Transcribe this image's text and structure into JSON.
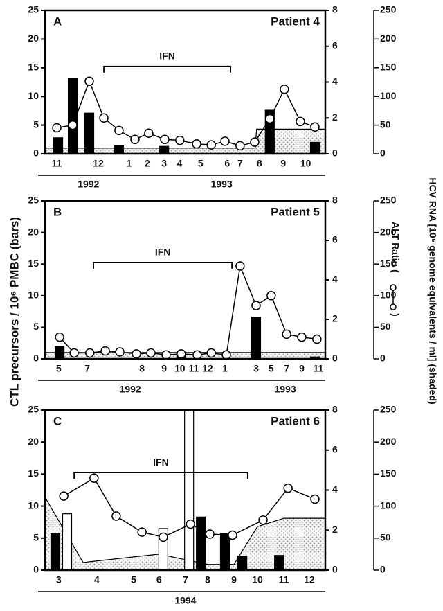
{
  "figure": {
    "y_label": "CTL precursors / 10⁶ PMBC (bars)",
    "y2_label_start": "ALT Ratio (",
    "y2_label_end": ")",
    "y3_label": "HCV RNA [10⁵ genome equivalents / ml] (shaded)"
  },
  "chart_data": [
    {
      "type": "combo",
      "panel": "A",
      "title": "Patient 4",
      "ifn": {
        "label": "IFN",
        "start": 21,
        "end": 66.2
      },
      "xlim": [
        0,
        100
      ],
      "xticks": [
        {
          "value": 4.2,
          "label": "11"
        },
        {
          "value": 19,
          "label": "12"
        },
        {
          "value": 30,
          "label": "1"
        },
        {
          "value": 36.5,
          "label": "2"
        },
        {
          "value": 42.5,
          "label": "3"
        },
        {
          "value": 48,
          "label": "4"
        },
        {
          "value": 55.5,
          "label": "5"
        },
        {
          "value": 65,
          "label": "6"
        },
        {
          "value": 69.6,
          "label": "7"
        },
        {
          "value": 76.5,
          "label": "8"
        },
        {
          "value": 85,
          "label": "9"
        },
        {
          "value": 93,
          "label": "10"
        }
      ],
      "years": [
        {
          "value": 15.5,
          "label": "1992"
        },
        {
          "value": 63,
          "label": "1993"
        }
      ],
      "ylim": [
        0,
        25
      ],
      "yticks": [
        0,
        5,
        10,
        15,
        20,
        25
      ],
      "y2lim": [
        0,
        8
      ],
      "y2ticks": [
        0,
        2,
        4,
        6,
        8
      ],
      "y3lim": [
        0,
        250
      ],
      "y3ticks": [
        0,
        50,
        100,
        150,
        200,
        250
      ],
      "series": [
        {
          "kind": "area",
          "axis": "y3",
          "color": "#bbbbbb",
          "x": [
            0,
            75,
            75.5,
            100
          ],
          "values": [
            10,
            10,
            43,
            43
          ]
        },
        {
          "kind": "bar",
          "axis": "y",
          "color": "#000000",
          "x": [
            4.7,
            9.9,
            15.8,
            26.4,
            42.5,
            80.2,
            96.3
          ],
          "values": [
            2.8,
            13.2,
            7.1,
            1.4,
            1.3,
            7.6,
            2
          ]
        },
        {
          "kind": "line",
          "axis": "y2",
          "color": "#000000",
          "x": [
            4.2,
            9.9,
            15.8,
            21,
            26.4,
            32.1,
            37,
            42.7,
            48.1,
            54.1,
            59.3,
            64.2,
            69.6,
            74.8,
            80.2,
            85.4,
            91.1,
            96.3
          ],
          "values": [
            1.45,
            1.6,
            4.05,
            2.0,
            1.3,
            0.8,
            1.15,
            0.8,
            0.75,
            0.55,
            0.5,
            0.7,
            0.45,
            0.65,
            1.95,
            3.6,
            1.8,
            1.5
          ]
        }
      ]
    },
    {
      "type": "combo",
      "panel": "B",
      "title": "Patient 5",
      "ifn": {
        "label": "IFN",
        "start": 17.3,
        "end": 66.7
      },
      "xlim": [
        0,
        100
      ],
      "xticks": [
        {
          "value": 4.9,
          "label": "5"
        },
        {
          "value": 15.1,
          "label": "7"
        },
        {
          "value": 34.6,
          "label": "8"
        },
        {
          "value": 42.5,
          "label": "9"
        },
        {
          "value": 48.1,
          "label": "10"
        },
        {
          "value": 53.1,
          "label": "11"
        },
        {
          "value": 58,
          "label": "12"
        },
        {
          "value": 64.2,
          "label": "1"
        },
        {
          "value": 75.3,
          "label": "3"
        },
        {
          "value": 80.7,
          "label": "5"
        },
        {
          "value": 86.2,
          "label": "7"
        },
        {
          "value": 91.6,
          "label": "9"
        },
        {
          "value": 97.5,
          "label": "11"
        }
      ],
      "years": [
        {
          "value": 30.4,
          "label": "1992"
        },
        {
          "value": 85.7,
          "label": "1993"
        }
      ],
      "ylim": [
        0,
        25
      ],
      "yticks": [
        0,
        5,
        10,
        15,
        20,
        25
      ],
      "y2lim": [
        0,
        8
      ],
      "y2ticks": [
        0,
        2,
        4,
        6,
        8
      ],
      "y3lim": [
        0,
        250
      ],
      "y3ticks": [
        0,
        50,
        100,
        150,
        200,
        250
      ],
      "series": [
        {
          "kind": "area",
          "axis": "y3",
          "color": "#bbbbbb",
          "x": [
            0,
            100
          ],
          "values": [
            10,
            10
          ]
        },
        {
          "kind": "bar",
          "axis": "y",
          "color": "#000000",
          "x": [
            5.2,
            48.6,
            75.3,
            96.3
          ],
          "values": [
            2,
            0.9,
            6.6,
            0.3
          ]
        },
        {
          "kind": "line",
          "axis": "y2",
          "color": "#000000",
          "x": [
            5.2,
            10.4,
            16,
            21.5,
            26.7,
            32.6,
            37.8,
            43.2,
            48.6,
            54.3,
            59.3,
            64.7,
            69.6,
            75.3,
            80.7,
            86.2,
            91.6,
            97
          ],
          "values": [
            1.1,
            0.3,
            0.3,
            0.4,
            0.35,
            0.25,
            0.3,
            0.2,
            0.25,
            0.2,
            0.3,
            0.2,
            4.7,
            2.7,
            3.2,
            1.25,
            1.1,
            1.0
          ]
        }
      ]
    },
    {
      "type": "combo",
      "panel": "C",
      "title": "Patient 6",
      "ifn": {
        "label": "IFN",
        "start": 10.4,
        "end": 72.3
      },
      "xlim": [
        0,
        100
      ],
      "xticks": [
        {
          "value": 4.9,
          "label": "3"
        },
        {
          "value": 18.5,
          "label": "4"
        },
        {
          "value": 31.6,
          "label": "5"
        },
        {
          "value": 40.7,
          "label": "6"
        },
        {
          "value": 50.1,
          "label": "7"
        },
        {
          "value": 58,
          "label": "8"
        },
        {
          "value": 67.4,
          "label": "9"
        },
        {
          "value": 75.8,
          "label": "10"
        },
        {
          "value": 85.2,
          "label": "11"
        },
        {
          "value": 94.3,
          "label": "12"
        }
      ],
      "years": [
        {
          "value": 50.1,
          "label": "1994"
        }
      ],
      "ylim": [
        0,
        25
      ],
      "yticks": [
        0,
        5,
        10,
        15,
        20,
        25
      ],
      "y2lim": [
        0,
        8
      ],
      "y2ticks": [
        0,
        2,
        4,
        6,
        8
      ],
      "y3lim": [
        0,
        250
      ],
      "y3ticks": [
        0,
        50,
        100,
        150,
        200,
        250
      ],
      "series": [
        {
          "kind": "area",
          "axis": "y3",
          "color": "#bbbbbb",
          "x": [
            0,
            13.6,
            40.7,
            58,
            67.4,
            75.8,
            85.2,
            100
          ],
          "values": [
            114,
            12,
            25,
            9,
            9,
            68,
            81,
            81
          ]
        },
        {
          "kind": "bar",
          "axis": "y",
          "color": "#ffffff",
          "x": [
            7.9,
            42.2,
            51.4
          ],
          "values": [
            8.8,
            6.5,
            25
          ]
        },
        {
          "kind": "bar",
          "axis": "y",
          "color": "#000000",
          "x": [
            3.7,
            55.6,
            64.2,
            70.4,
            83.5
          ],
          "values": [
            5.7,
            8.3,
            5.7,
            2.2,
            2.3
          ]
        },
        {
          "kind": "line",
          "axis": "y2",
          "color": "#000000",
          "x": [
            6.7,
            17.5,
            25.4,
            34.6,
            42.2,
            51.9,
            58.8,
            66.9,
            77.8,
            86.7,
            96.3
          ],
          "values": [
            3.7,
            4.6,
            2.7,
            1.9,
            1.65,
            2.3,
            1.8,
            1.75,
            2.5,
            4.1,
            3.55
          ]
        }
      ]
    }
  ]
}
